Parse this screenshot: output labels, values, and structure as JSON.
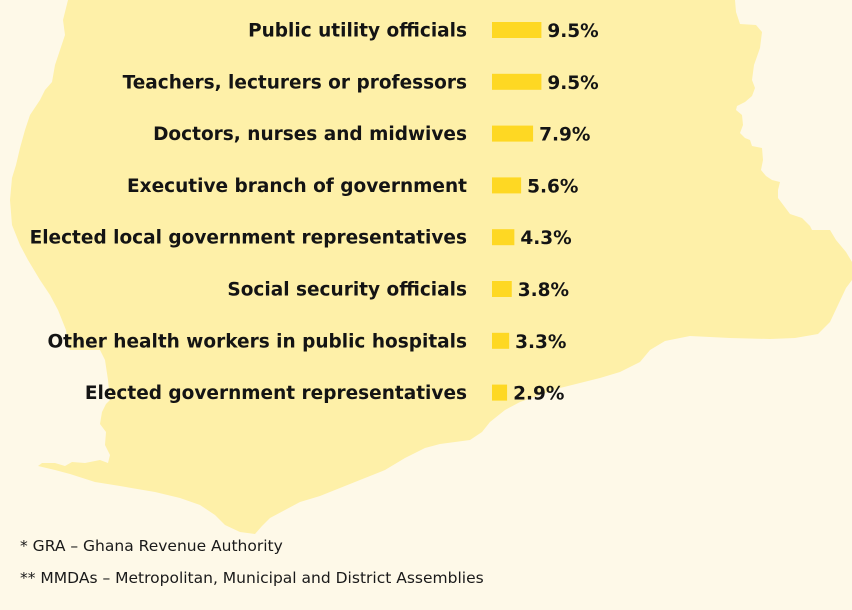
{
  "colors": {
    "background": "#fef9e8",
    "map_fill": "#fef0a8",
    "bar": "#fed823",
    "text": "#141414"
  },
  "chart_data": {
    "type": "bar",
    "orientation": "horizontal",
    "categories": [
      "Public utility officials",
      "Teachers, lecturers or professors",
      "Doctors, nurses and midwives",
      "Executive branch of government",
      "Elected local government representatives",
      "Social security officials",
      "Other health workers in public hospitals",
      "Elected government representatives"
    ],
    "values": [
      9.5,
      9.5,
      7.9,
      5.6,
      4.3,
      3.8,
      3.3,
      2.9
    ],
    "value_labels": [
      "9.5%",
      "9.5%",
      "7.9%",
      "5.6%",
      "4.3%",
      "3.8%",
      "3.3%",
      "2.9%"
    ],
    "unit": "%",
    "xlim": [
      0,
      10
    ],
    "grid": false,
    "title": "",
    "xlabel": "",
    "ylabel": ""
  },
  "footnotes": [
    "* GRA – Ghana Revenue Authority",
    "** MMDAs – Metropolitan, Municipal and District Assemblies"
  ]
}
